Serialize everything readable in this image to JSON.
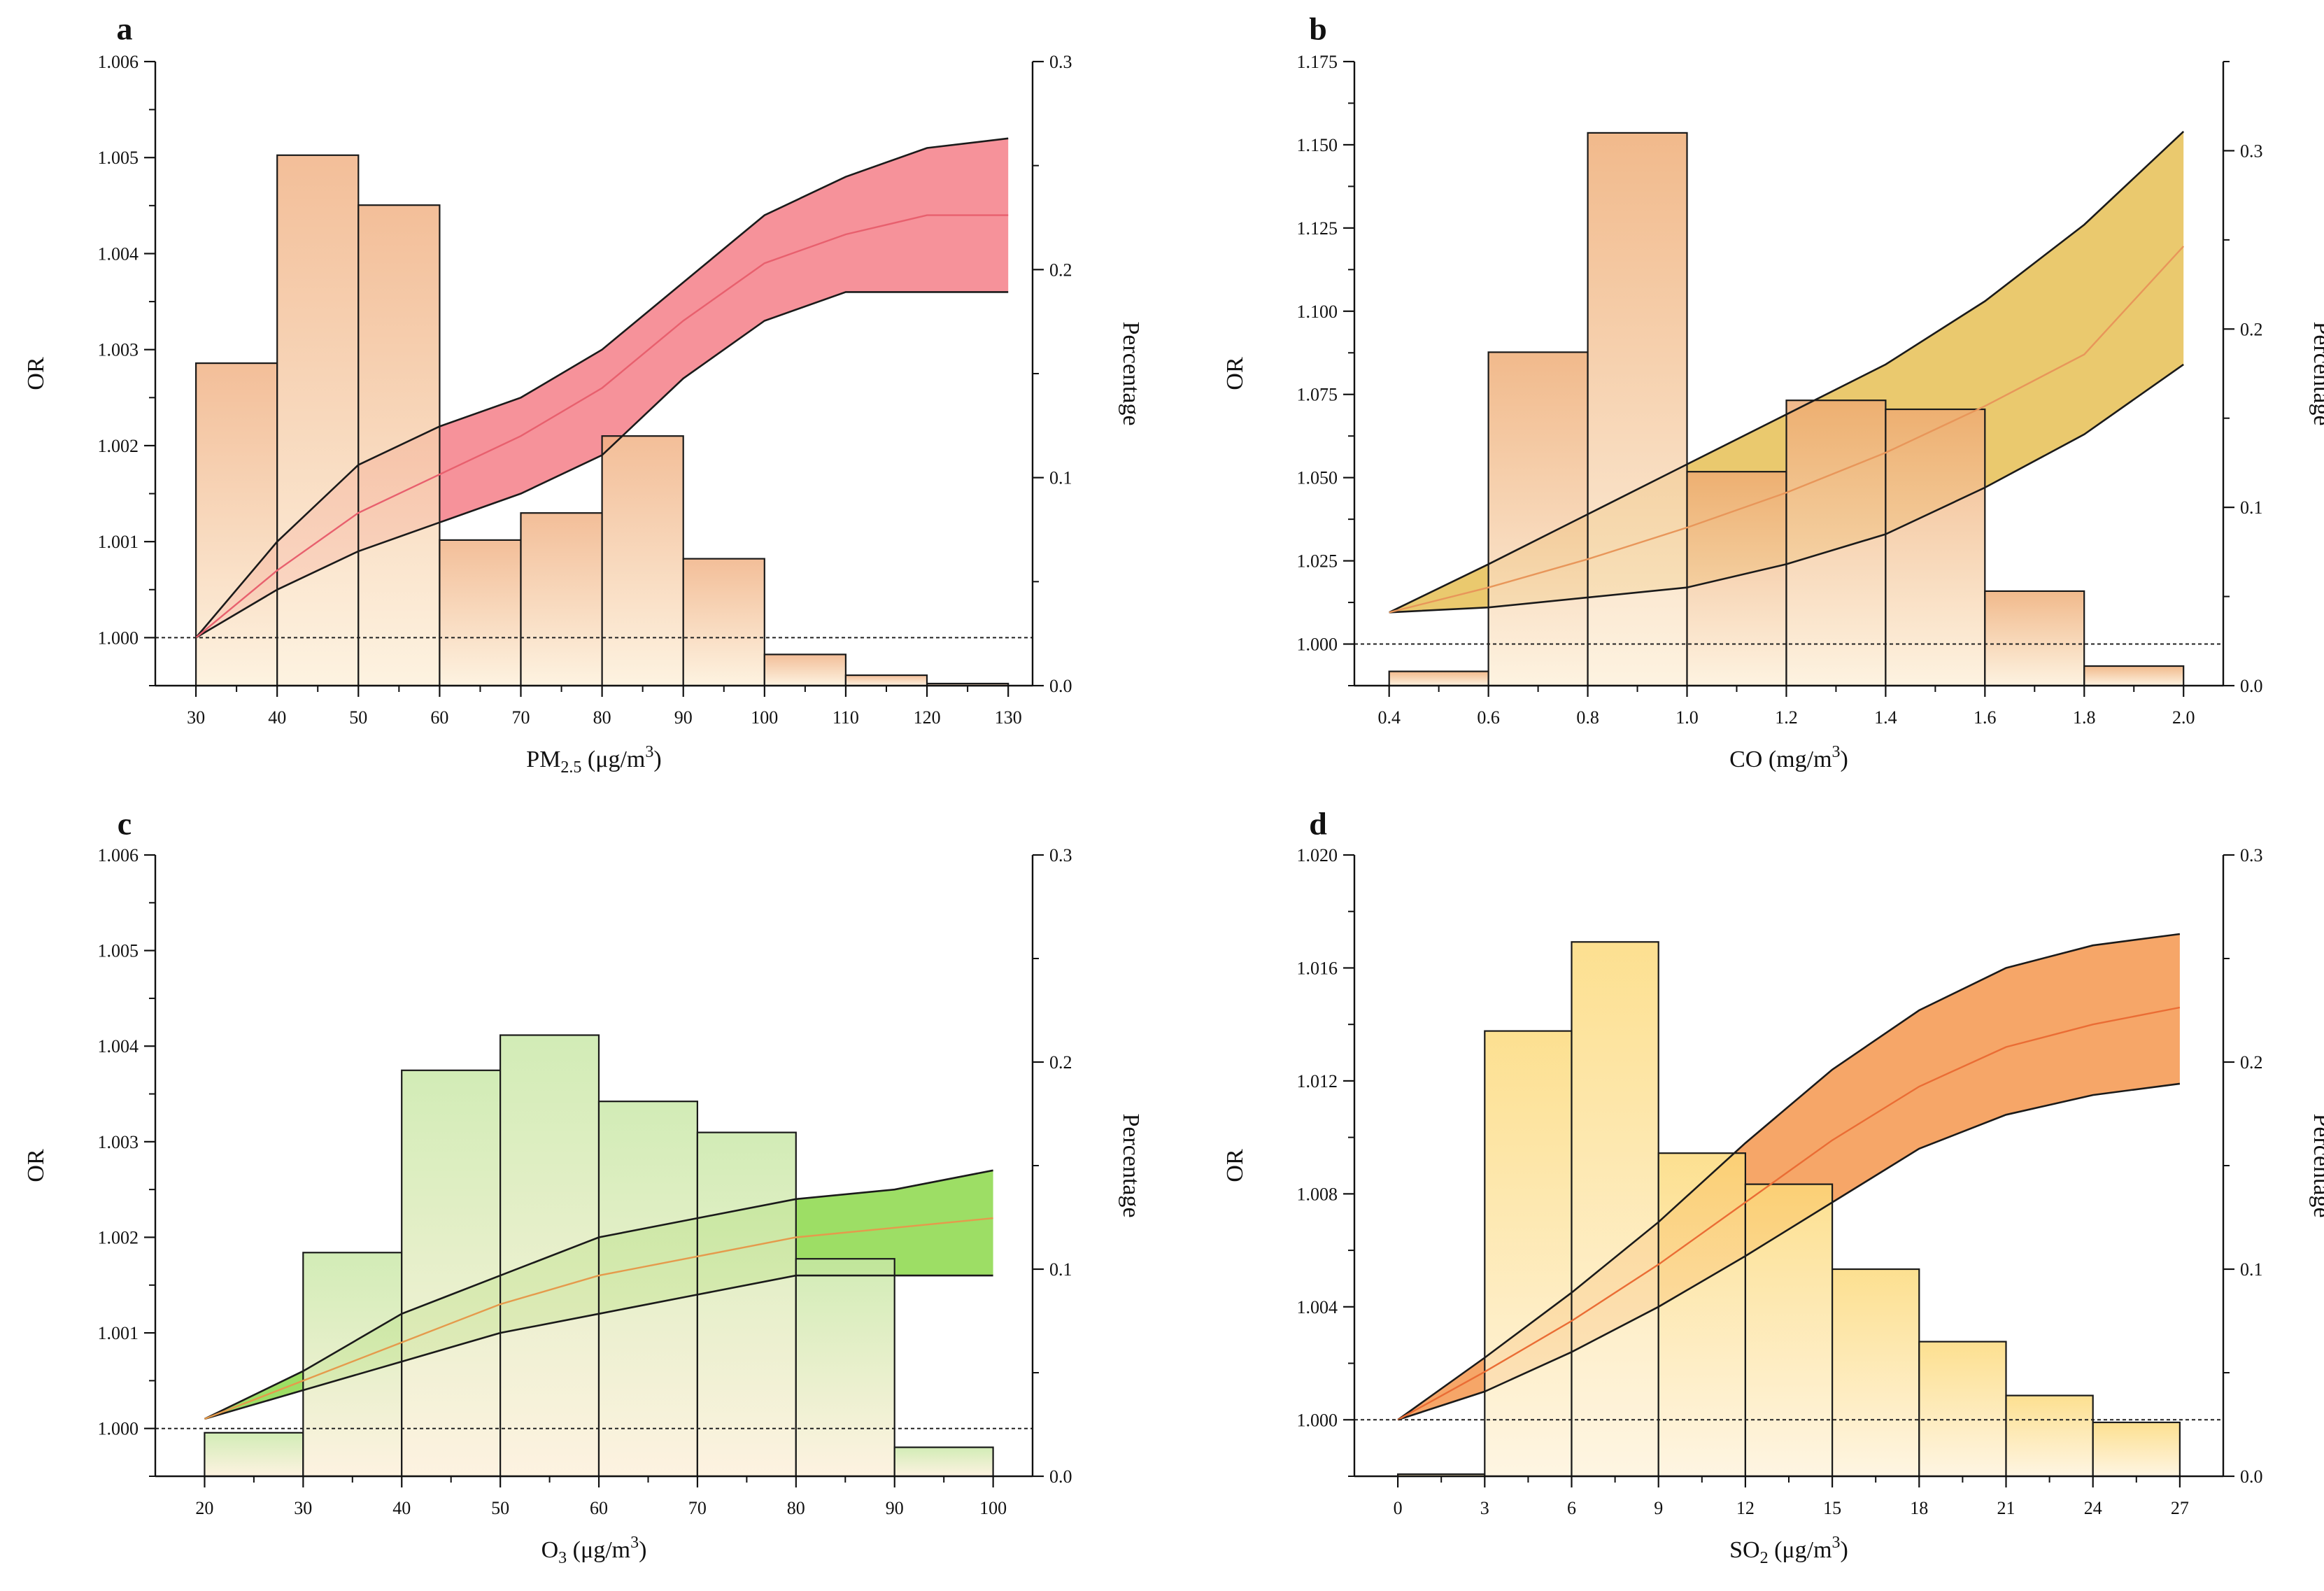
{
  "chart_data": [
    {
      "id": "a",
      "type": "bar+line",
      "panel_label": "a",
      "x_label": {
        "pre": "PM",
        "sub": "2.5",
        "post": " (μg/m",
        "sup": "3",
        "close": ")"
      },
      "y_left_label": "OR",
      "y_right_label": "Percentage",
      "x_range": [
        25,
        133
      ],
      "x_ticks": [
        30,
        40,
        50,
        60,
        70,
        80,
        90,
        100,
        110,
        120,
        130
      ],
      "x_tick_labels": [
        "30",
        "40",
        "50",
        "60",
        "70",
        "80",
        "90",
        "100",
        "110",
        "120",
        "130"
      ],
      "y_left_range": [
        0.9995,
        1.006
      ],
      "y_left_ticks": [
        1.0,
        1.001,
        1.002,
        1.003,
        1.004,
        1.005,
        1.006
      ],
      "y_left_tick_labels": [
        "1.000",
        "1.001",
        "1.002",
        "1.003",
        "1.004",
        "1.005",
        "1.006"
      ],
      "y_right_range": [
        0,
        0.3
      ],
      "y_right_ticks": [
        0,
        0.1,
        0.2,
        0.3
      ],
      "y_right_tick_labels": [
        "0.0",
        "0.1",
        "0.2",
        "0.3"
      ],
      "reference_line": 1.0,
      "histogram": {
        "bin_edges": [
          30,
          40,
          50,
          60,
          70,
          80,
          90,
          100,
          110,
          120,
          130
        ],
        "values": [
          0.155,
          0.255,
          0.231,
          0.07,
          0.083,
          0.12,
          0.061,
          0.015,
          0.005,
          0.001
        ]
      },
      "curve": {
        "x": [
          30,
          40,
          50,
          60,
          70,
          80,
          90,
          100,
          110,
          120,
          130
        ],
        "mid": [
          1.0,
          1.0007,
          1.0013,
          1.0017,
          1.0021,
          1.0026,
          1.0033,
          1.0039,
          1.0042,
          1.0044,
          1.0044
        ],
        "upper": [
          1.0,
          1.001,
          1.0018,
          1.0022,
          1.0025,
          1.003,
          1.0037,
          1.0044,
          1.0048,
          1.0051,
          1.0052
        ],
        "lower": [
          1.0,
          1.0005,
          1.0009,
          1.0012,
          1.0015,
          1.0019,
          1.0027,
          1.0033,
          1.0036,
          1.0036,
          1.0036
        ]
      },
      "colors": {
        "band": "#f47f88",
        "band_light": "#fbc4c8",
        "bar_top": "#f0b082",
        "bar_bottom": "#fdf0da",
        "curve": "#e8606e"
      }
    },
    {
      "id": "b",
      "type": "bar+line",
      "panel_label": "b",
      "x_label": {
        "pre": "CO",
        "sub": "",
        "post": " (mg/m",
        "sup": "3",
        "close": ")"
      },
      "y_left_label": "OR",
      "y_right_label": "Percentage",
      "x_range": [
        0.33,
        2.08
      ],
      "x_ticks": [
        0.4,
        0.6,
        0.8,
        1.0,
        1.2,
        1.4,
        1.6,
        1.8,
        2.0
      ],
      "x_tick_labels": [
        "0.4",
        "0.6",
        "0.8",
        "1.0",
        "1.2",
        "1.4",
        "1.6",
        "1.8",
        "2.0"
      ],
      "y_left_range": [
        0.9875,
        1.175
      ],
      "y_left_ticks": [
        1.0,
        1.025,
        1.05,
        1.075,
        1.1,
        1.125,
        1.15,
        1.175
      ],
      "y_left_tick_labels": [
        "1.000",
        "1.025",
        "1.050",
        "1.075",
        "1.100",
        "1.125",
        "1.150",
        "1.175"
      ],
      "y_right_range": [
        0,
        0.35
      ],
      "y_right_ticks": [
        0,
        0.1,
        0.2,
        0.3
      ],
      "y_right_tick_labels": [
        "0.0",
        "0.1",
        "0.2",
        "0.3"
      ],
      "reference_line": 1.0,
      "histogram": {
        "bin_edges": [
          0.4,
          0.6,
          0.8,
          1.0,
          1.2,
          1.4,
          1.6,
          1.8,
          2.0
        ],
        "values": [
          0.008,
          0.187,
          0.31,
          0.12,
          0.16,
          0.155,
          0.053,
          0.011
        ]
      },
      "curve": {
        "x": [
          0.4,
          0.6,
          0.8,
          1.0,
          1.2,
          1.4,
          1.6,
          1.8,
          2.0
        ],
        "mid": [
          1.0095,
          1.017,
          1.0255,
          1.035,
          1.0455,
          1.0575,
          1.0715,
          1.087,
          1.1195
        ],
        "upper": [
          1.0095,
          1.024,
          1.039,
          1.054,
          1.069,
          1.084,
          1.103,
          1.126,
          1.154
        ],
        "lower": [
          1.0095,
          1.011,
          1.014,
          1.017,
          1.024,
          1.033,
          1.047,
          1.063,
          1.084
        ]
      },
      "colors": {
        "band": "#e6bf55",
        "band_light": "#f1d68d",
        "bar_top": "#eeaa72",
        "bar_bottom": "#fdf0da",
        "curve": "#e8965a"
      }
    },
    {
      "id": "c",
      "type": "bar+line",
      "panel_label": "c",
      "x_label": {
        "pre": "O",
        "sub": "3",
        "post": " (μg/m",
        "sup": "3",
        "close": ")"
      },
      "y_left_label": "OR",
      "y_right_label": "Percentage",
      "x_range": [
        15,
        104
      ],
      "x_ticks": [
        20,
        30,
        40,
        50,
        60,
        70,
        80,
        90,
        100
      ],
      "x_tick_labels": [
        "20",
        "30",
        "40",
        "50",
        "60",
        "70",
        "80",
        "90",
        "100"
      ],
      "y_left_range": [
        0.9995,
        1.006
      ],
      "y_left_ticks": [
        1.0,
        1.001,
        1.002,
        1.003,
        1.004,
        1.005,
        1.006
      ],
      "y_left_tick_labels": [
        "1.000",
        "1.001",
        "1.002",
        "1.003",
        "1.004",
        "1.005",
        "1.006"
      ],
      "y_right_range": [
        0,
        0.3
      ],
      "y_right_ticks": [
        0,
        0.1,
        0.2,
        0.3
      ],
      "y_right_tick_labels": [
        "0.0",
        "0.1",
        "0.2",
        "0.3"
      ],
      "reference_line": 1.0,
      "histogram": {
        "bin_edges": [
          20,
          30,
          40,
          50,
          60,
          70,
          80,
          90,
          100
        ],
        "values": [
          0.021,
          0.108,
          0.196,
          0.213,
          0.181,
          0.166,
          0.105,
          0.014
        ]
      },
      "curve": {
        "x": [
          20,
          30,
          40,
          50,
          60,
          70,
          80,
          90,
          100
        ],
        "mid": [
          1.0001,
          1.0005,
          1.0009,
          1.0013,
          1.0016,
          1.0018,
          1.002,
          1.0021,
          1.0022
        ],
        "upper": [
          1.0001,
          1.0006,
          1.0012,
          1.0016,
          1.002,
          1.0022,
          1.0024,
          1.0025,
          1.0027
        ],
        "lower": [
          1.0001,
          1.0004,
          1.0007,
          1.001,
          1.0012,
          1.0014,
          1.0016,
          1.0016,
          1.0016
        ]
      },
      "colors": {
        "band": "#8cd84a",
        "band_light": "#c8ec9c",
        "bar_top": "#c8e8a6",
        "bar_bottom": "#fdf0da",
        "curve": "#e59a4c"
      }
    },
    {
      "id": "d",
      "type": "bar+line",
      "panel_label": "d",
      "x_label": {
        "pre": "SO",
        "sub": "2",
        "post": " (μg/m",
        "sup": "3",
        "close": ")"
      },
      "y_left_label": "OR",
      "y_right_label": "Percentage",
      "x_range": [
        -1.5,
        28.5
      ],
      "x_ticks": [
        0,
        3,
        6,
        9,
        12,
        15,
        18,
        21,
        24,
        27
      ],
      "x_tick_labels": [
        "0",
        "3",
        "6",
        "9",
        "12",
        "15",
        "18",
        "21",
        "24",
        "27"
      ],
      "y_left_range": [
        0.998,
        1.02
      ],
      "y_left_ticks": [
        1.0,
        1.004,
        1.008,
        1.012,
        1.016,
        1.02
      ],
      "y_left_tick_labels": [
        "1.000",
        "1.004",
        "1.008",
        "1.012",
        "1.016",
        "1.020"
      ],
      "y_right_range": [
        0,
        0.3
      ],
      "y_right_ticks": [
        0,
        0.1,
        0.2,
        0.3
      ],
      "y_right_tick_labels": [
        "0.0",
        "0.1",
        "0.2",
        "0.3"
      ],
      "reference_line": 1.0,
      "histogram": {
        "bin_edges": [
          0,
          3,
          6,
          9,
          12,
          15,
          18,
          21,
          24,
          27
        ],
        "values": [
          0.001,
          0.215,
          0.258,
          0.156,
          0.141,
          0.1,
          0.065,
          0.039,
          0.026
        ]
      },
      "curve": {
        "x": [
          0,
          3,
          6,
          9,
          12,
          15,
          18,
          21,
          24,
          27
        ],
        "mid": [
          1.0,
          1.0017,
          1.0035,
          1.0055,
          1.0077,
          1.0099,
          1.0118,
          1.0132,
          1.014,
          1.0146
        ],
        "upper": [
          1.0,
          1.0022,
          1.0045,
          1.007,
          1.0098,
          1.0124,
          1.0145,
          1.016,
          1.0168,
          1.0172
        ],
        "lower": [
          1.0,
          1.001,
          1.0024,
          1.004,
          1.0058,
          1.0077,
          1.0096,
          1.0108,
          1.0115,
          1.0119
        ]
      },
      "colors": {
        "band": "#f4964e",
        "band_light": "#f8c08a",
        "bar_top": "#fcd978",
        "bar_bottom": "#fef3dc",
        "curve": "#ea6d35"
      }
    }
  ]
}
